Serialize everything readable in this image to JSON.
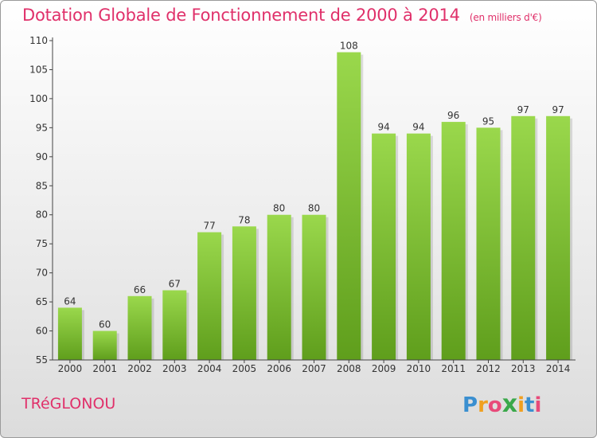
{
  "header": {
    "title": "Dotation Globale de Fonctionnement de 2000 à 2014",
    "subtitle": "(en milliers d'€)"
  },
  "footer": {
    "commune": "TRéGLONOU",
    "logo_letters": [
      "P",
      "r",
      "o",
      "x",
      "i",
      "t",
      "i"
    ],
    "logo_colors": [
      "#3a8fd0",
      "#f0a020",
      "#e84a7a",
      "#3aa84a",
      "#f0a020",
      "#3a8fd0",
      "#e84a7a"
    ]
  },
  "colors": {
    "bar": "#7cc030",
    "bar_dark": "#5f9e1c",
    "accent": "#e0306a"
  },
  "chart_data": {
    "type": "bar",
    "categories": [
      "2000",
      "2001",
      "2002",
      "2003",
      "2004",
      "2005",
      "2006",
      "2007",
      "2008",
      "2009",
      "2010",
      "2011",
      "2012",
      "2013",
      "2014"
    ],
    "values": [
      64,
      60,
      66,
      67,
      77,
      78,
      80,
      80,
      108,
      94,
      94,
      96,
      95,
      97,
      97
    ],
    "ylim": [
      55,
      110
    ],
    "yticks": [
      55,
      60,
      65,
      70,
      75,
      80,
      85,
      90,
      95,
      100,
      105,
      110
    ],
    "grid": "none",
    "data_labels": true
  }
}
